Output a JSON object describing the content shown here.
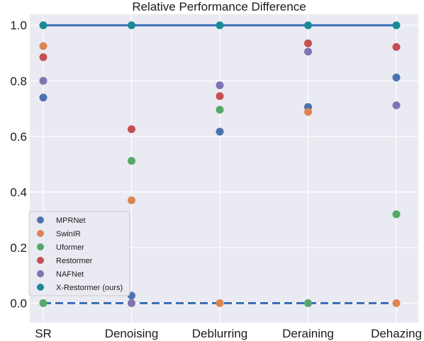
{
  "chart_data": {
    "type": "scatter",
    "title": "Relative Performance Difference",
    "categories": [
      "SR",
      "Denoising",
      "Deblurring",
      "Deraining",
      "Dehazing"
    ],
    "yticks": [
      0.0,
      0.2,
      0.4,
      0.6,
      0.8,
      1.0
    ],
    "ylim": [
      -0.07,
      1.04
    ],
    "grid": true,
    "legend_position": "lower-left",
    "reference_lines": {
      "top": 1.0,
      "bottom": 0.0,
      "color": "#3b6fb6"
    },
    "series": [
      {
        "name": "MPRNet",
        "color": "#4c72b0",
        "values": [
          0.74,
          0.027,
          0.617,
          0.706,
          0.812
        ]
      },
      {
        "name": "SwinIR",
        "color": "#dd8452",
        "values": [
          0.925,
          0.37,
          0.0,
          0.688,
          0.0
        ]
      },
      {
        "name": "Uformer",
        "color": "#55a868",
        "values": [
          0.0,
          0.512,
          0.696,
          0.0,
          0.32
        ]
      },
      {
        "name": "Restormer",
        "color": "#c44e52",
        "values": [
          0.885,
          0.626,
          0.745,
          0.935,
          0.922
        ]
      },
      {
        "name": "NAFNet",
        "color": "#8172b3",
        "values": [
          0.8,
          0.0,
          0.784,
          0.905,
          0.712
        ]
      },
      {
        "name": "X-Restormer (ours)",
        "color": "#1a8a97",
        "values": [
          1.0,
          1.0,
          1.0,
          1.0,
          1.0
        ]
      }
    ]
  }
}
